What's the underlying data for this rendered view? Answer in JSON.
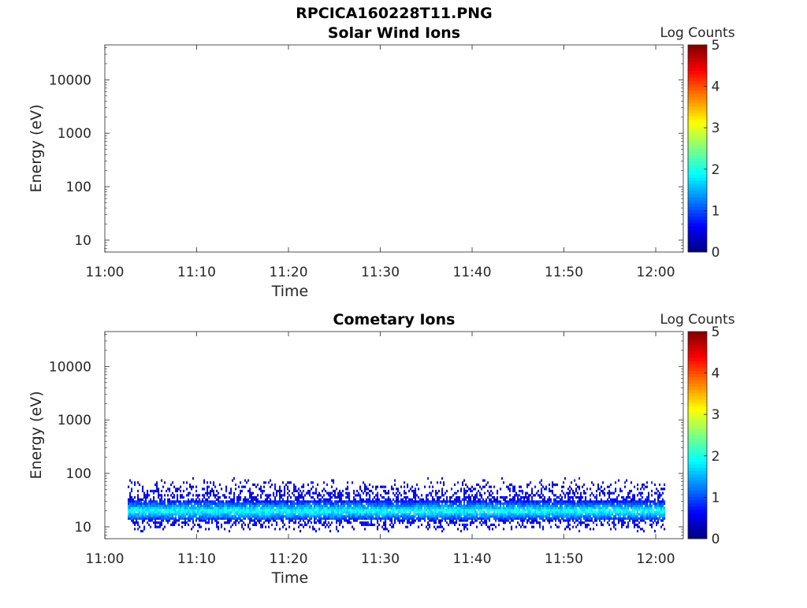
{
  "figure": {
    "title": "RPCICA160228T11.PNG"
  },
  "chart_data": [
    {
      "type": "heatmap",
      "title": "Solar Wind Ions",
      "xlabel": "Time",
      "ylabel": "Energy (eV)",
      "x_ticks": [
        "11:00",
        "11:10",
        "11:20",
        "11:30",
        "11:40",
        "11:50",
        "12:00"
      ],
      "y_ticks": [
        "10",
        "100",
        "1000",
        "10000"
      ],
      "y_scale": "log",
      "xlim": [
        "11:00",
        "12:03"
      ],
      "ylim": [
        6,
        45000
      ],
      "colorbar": {
        "label": "Log Counts",
        "ticks": [
          "0",
          "1",
          "2",
          "3",
          "4",
          "5"
        ],
        "range": [
          0,
          5
        ],
        "colormap": "jet"
      },
      "data_present": false,
      "band": null
    },
    {
      "type": "heatmap",
      "title": "Cometary Ions",
      "xlabel": "Time",
      "ylabel": "Energy (eV)",
      "x_ticks": [
        "11:00",
        "11:10",
        "11:20",
        "11:30",
        "11:40",
        "11:50",
        "12:00"
      ],
      "y_ticks": [
        "10",
        "100",
        "1000",
        "10000"
      ],
      "y_scale": "log",
      "xlim": [
        "11:00",
        "12:03"
      ],
      "ylim": [
        6,
        45000
      ],
      "colorbar": {
        "label": "Log Counts",
        "ticks": [
          "0",
          "1",
          "2",
          "3",
          "4",
          "5"
        ],
        "range": [
          0,
          5
        ],
        "colormap": "jet"
      },
      "data_present": true,
      "band": {
        "time_start": "11:02.5",
        "time_end": "12:01",
        "energy_peak_eV": 20,
        "energy_core_range_eV": [
          14,
          30
        ],
        "energy_sparse_range_eV": [
          8,
          85
        ],
        "core_log_counts": [
          1.5,
          2.0
        ],
        "edge_log_counts": [
          0.2,
          0.8
        ]
      }
    }
  ],
  "colors": {
    "axis": "#262626",
    "text": "#262626"
  }
}
